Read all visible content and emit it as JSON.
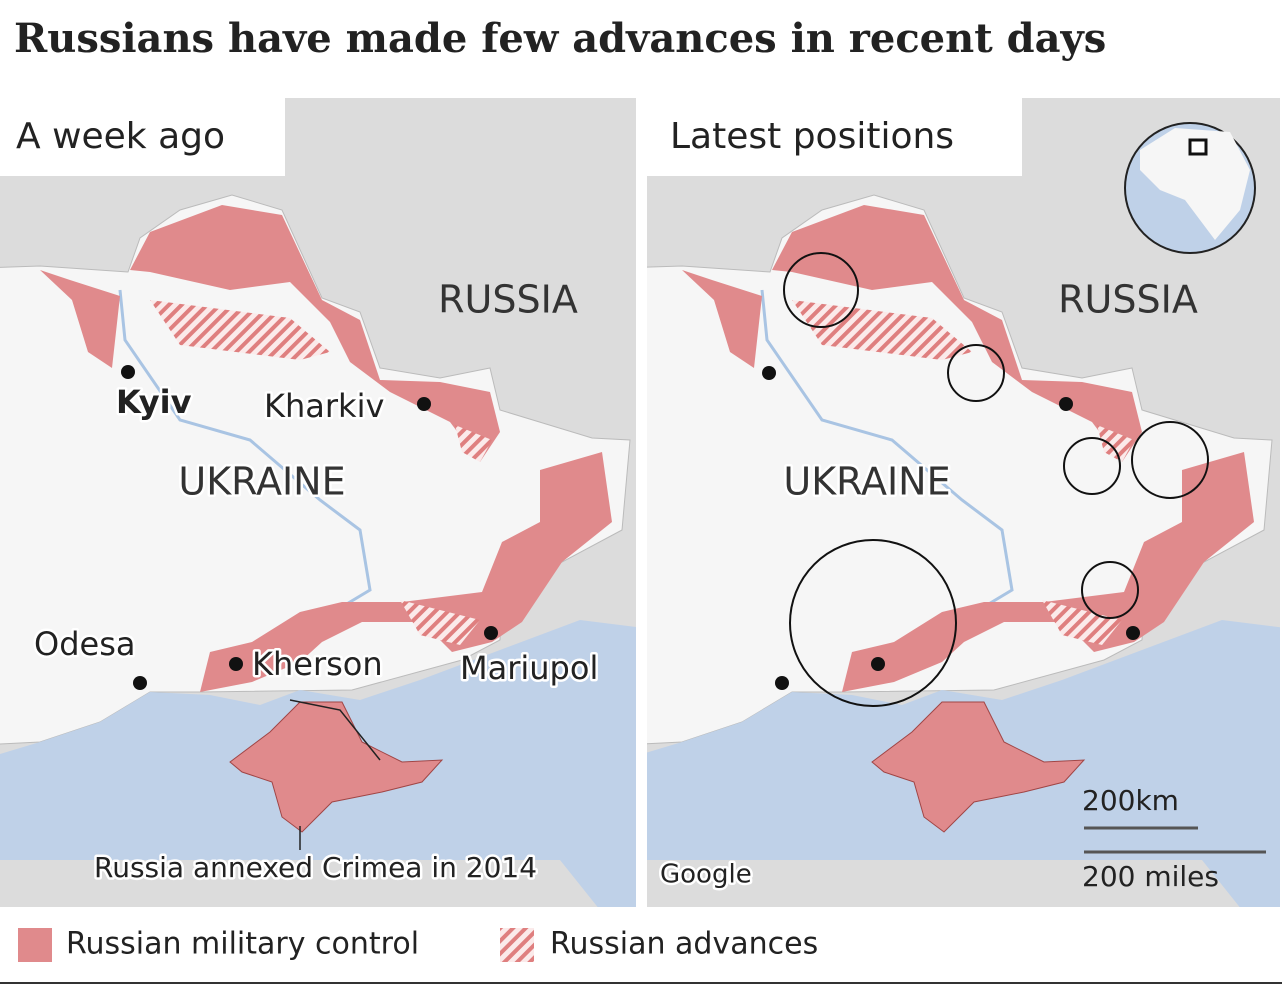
{
  "title": "Russians have made few advances in recent days",
  "panels": [
    {
      "heading": "A week ago",
      "labels": {
        "russia": "RUSSIA",
        "ukraine": "UKRAINE",
        "kyiv": "Kyiv",
        "kharkiv": "Kharkiv",
        "odesa": "Odesa",
        "kherson": "Kherson",
        "mariupol": "Mariupol",
        "note": "Russia annexed Crimea in 2014"
      }
    },
    {
      "heading": "Latest positions",
      "labels": {
        "russia": "RUSSIA",
        "ukraine": "UKRAINE"
      },
      "attribution": "Google",
      "scale": {
        "km": "200km",
        "miles": "200 miles"
      }
    }
  ],
  "legend": [
    "Russian military control",
    "Russian advances"
  ]
}
